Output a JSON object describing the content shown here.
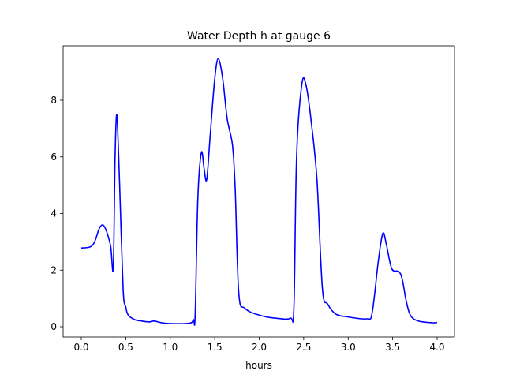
{
  "chart_data": {
    "type": "line",
    "title": "Water Depth h at gauge 6",
    "xlabel": "hours",
    "ylabel": "",
    "xlim": [
      -0.2,
      4.2
    ],
    "ylim": [
      -0.35,
      10.0
    ],
    "xticks": [
      0.0,
      0.5,
      1.0,
      1.5,
      2.0,
      2.5,
      3.0,
      3.5,
      4.0
    ],
    "xtick_labels": [
      "0.0",
      "0.5",
      "1.0",
      "1.5",
      "2.0",
      "2.5",
      "3.0",
      "3.5",
      "4.0"
    ],
    "yticks": [
      0,
      2,
      4,
      6,
      8
    ],
    "ytick_labels": [
      "0",
      "2",
      "4",
      "6",
      "8"
    ],
    "grid": false,
    "series": [
      {
        "name": "h",
        "color": "#0000ff",
        "x": [
          0.0,
          0.1,
          0.15,
          0.2,
          0.24,
          0.28,
          0.33,
          0.36,
          0.38,
          0.4,
          0.43,
          0.47,
          0.5,
          0.53,
          0.6,
          0.68,
          0.77,
          0.82,
          0.95,
          1.21,
          1.26,
          1.28,
          1.31,
          1.35,
          1.38,
          1.41,
          1.45,
          1.5,
          1.54,
          1.59,
          1.64,
          1.7,
          1.73,
          1.77,
          1.84,
          2.01,
          2.19,
          2.35,
          2.39,
          2.42,
          2.48,
          2.53,
          2.59,
          2.65,
          2.71,
          2.77,
          2.86,
          2.99,
          3.21,
          3.27,
          3.34,
          3.39,
          3.43,
          3.49,
          3.57,
          3.61,
          3.65,
          3.7,
          3.79,
          3.95,
          4.0
        ],
        "y": [
          2.78,
          2.82,
          3.0,
          3.45,
          3.6,
          3.4,
          2.85,
          2.1,
          5.97,
          7.47,
          5.1,
          1.35,
          0.7,
          0.4,
          0.25,
          0.2,
          0.17,
          0.2,
          0.12,
          0.12,
          0.25,
          0.4,
          4.5,
          6.15,
          5.6,
          5.2,
          6.8,
          8.75,
          9.47,
          8.75,
          7.35,
          6.4,
          4.85,
          1.2,
          0.65,
          0.4,
          0.3,
          0.3,
          0.7,
          6.0,
          8.58,
          8.47,
          7.1,
          5.15,
          1.35,
          0.8,
          0.45,
          0.35,
          0.28,
          0.5,
          2.35,
          3.3,
          2.9,
          2.05,
          1.95,
          1.65,
          0.95,
          0.4,
          0.2,
          0.14,
          0.15
        ]
      }
    ]
  }
}
